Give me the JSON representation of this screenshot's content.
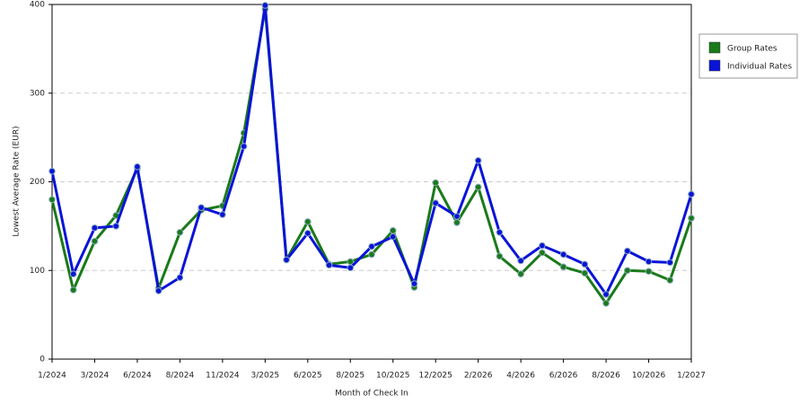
{
  "chart_data": {
    "type": "line",
    "x_label": "Month of Check In",
    "y_label": "Lowest Average Rate (EUR)",
    "categories": [
      "1/2024",
      null,
      "3/2024",
      null,
      "6/2024",
      null,
      "8/2024",
      null,
      "11/2024",
      null,
      "3/2025",
      null,
      "6/2025",
      null,
      "8/2025",
      null,
      "10/2025",
      null,
      "12/2025",
      null,
      "2/2026",
      null,
      "4/2026",
      null,
      "6/2026",
      null,
      "8/2026",
      null,
      "10/2026",
      null,
      "1/2027"
    ],
    "series": [
      {
        "name": "Group Rates",
        "color": "#1a7a1a",
        "values": [
          180,
          78,
          133,
          162,
          215,
          80,
          143,
          168,
          173,
          255,
          395,
          112,
          155,
          107,
          110,
          118,
          145,
          81,
          199,
          154,
          194,
          116,
          96,
          120,
          104,
          97,
          63,
          100,
          99,
          89,
          159
        ]
      },
      {
        "name": "Individual Rates",
        "color": "#0a14d8",
        "values": [
          212,
          96,
          148,
          150,
          217,
          77,
          92,
          171,
          163,
          240,
          399,
          112,
          142,
          106,
          103,
          127,
          138,
          85,
          176,
          161,
          224,
          143,
          111,
          128,
          118,
          107,
          73,
          122,
          110,
          109,
          186
        ]
      }
    ],
    "ylim": [
      0,
      400
    ],
    "yticks": [
      0,
      100,
      200,
      300,
      400
    ],
    "grid": true,
    "legend": "right"
  }
}
